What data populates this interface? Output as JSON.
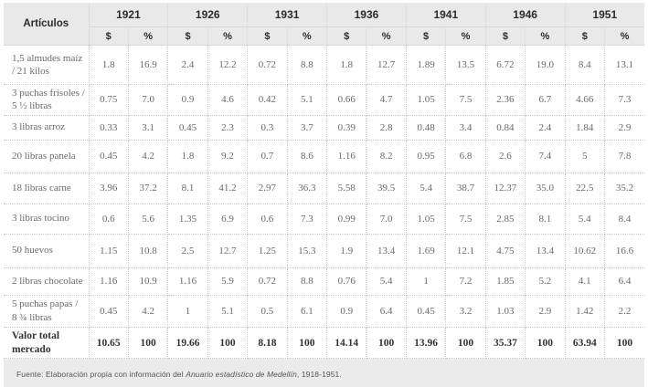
{
  "chart_data": {
    "type": "table",
    "title": "",
    "corner_header": "Artículos",
    "year_groups": [
      "1921",
      "1926",
      "1931",
      "1936",
      "1941",
      "1946",
      "1951"
    ],
    "sub_columns": [
      "$",
      "%"
    ],
    "rows": [
      {
        "label": "1,5 almudes maíz / 21 kilos",
        "bold": false,
        "values": [
          "1.8",
          "16.9",
          "2.4",
          "12.2",
          "0.72",
          "8.8",
          "1.8",
          "12.7",
          "1.89",
          "13.5",
          "6.72",
          "19.0",
          "8.4",
          "13.1"
        ]
      },
      {
        "label": "3 puchas frísoles / 5 ½ libras",
        "bold": false,
        "values": [
          "0.75",
          "7.0",
          "0.9",
          "4.6",
          "0.42",
          "5.1",
          "0.66",
          "4.7",
          "1.05",
          "7.5",
          "2.36",
          "6.7",
          "4.66",
          "7.3"
        ]
      },
      {
        "label": "3 libras arroz",
        "bold": false,
        "values": [
          "0.33",
          "3.1",
          "0.45",
          "2.3",
          "0.3",
          "3.7",
          "0.39",
          "2.8",
          "0.48",
          "3.4",
          "0.84",
          "2.4",
          "1.84",
          "2.9"
        ]
      },
      {
        "label": "20 libras panela",
        "bold": false,
        "values": [
          "0.45",
          "4.2",
          "1.8",
          "9.2",
          "0.7",
          "8.6",
          "1.16",
          "8.2",
          "0.95",
          "6.8",
          "2.6",
          "7.4",
          "5",
          "7.8"
        ]
      },
      {
        "label": "18 libras carne",
        "bold": false,
        "values": [
          "3.96",
          "37.2",
          "8.1",
          "41.2",
          "2.97",
          "36.3",
          "5.58",
          "39.5",
          "5.4",
          "38.7",
          "12.37",
          "35.0",
          "22.5",
          "35.2"
        ]
      },
      {
        "label": "3 libras tocino",
        "bold": false,
        "values": [
          "0.6",
          "5.6",
          "1.35",
          "6.9",
          "0.6",
          "7.3",
          "0.99",
          "7.0",
          "1.05",
          "7.5",
          "2.85",
          "8.1",
          "5.4",
          "8.4"
        ]
      },
      {
        "label": "50 huevos",
        "bold": false,
        "values": [
          "1.15",
          "10.8",
          "2.5",
          "12.7",
          "1.25",
          "15.3",
          "1.9",
          "13.4",
          "1.69",
          "12.1",
          "4.75",
          "13.4",
          "10.62",
          "16.6"
        ]
      },
      {
        "label": "2 libras chocolate",
        "bold": false,
        "values": [
          "1.16",
          "10.9",
          "1.16",
          "5.9",
          "0.72",
          "8.8",
          "0.76",
          "5.4",
          "1",
          "7.2",
          "1.85",
          "5.2",
          "4.1",
          "6.4"
        ]
      },
      {
        "label": "5 puchas papas / 8 ¾ libras",
        "bold": false,
        "values": [
          "0.45",
          "4.2",
          "1",
          "5.1",
          "0.5",
          "6.1",
          "0.9",
          "6.4",
          "0.45",
          "3.2",
          "1.03",
          "2.9",
          "1.42",
          "2.2"
        ]
      },
      {
        "label": "Valor total mercado",
        "bold": true,
        "values": [
          "10.65",
          "100",
          "19.66",
          "100",
          "8.18",
          "100",
          "14.14",
          "100",
          "13.96",
          "100",
          "35.37",
          "100",
          "63.94",
          "100"
        ]
      }
    ]
  },
  "footer": {
    "prefix": "Fuente: Elaboración propia con información del ",
    "source_italic": "Anuario estadístico de Medellín",
    "suffix": ", 1918-1951."
  },
  "colors": {
    "header_background": "#e9e9e9",
    "footer_background": "#ebebeb",
    "body_text": "#6a6a6a",
    "bold_text": "#333333",
    "dotted_border": "#c9c9c9"
  }
}
